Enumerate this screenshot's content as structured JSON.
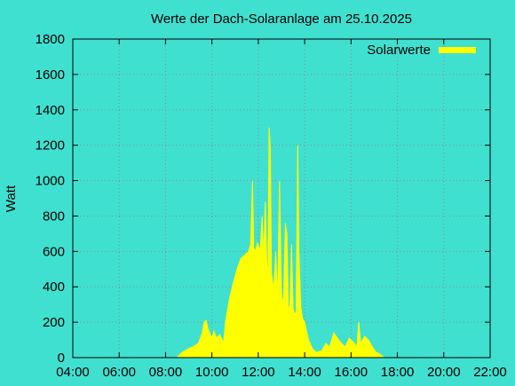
{
  "chart_data": {
    "type": "area",
    "title": "Werte der Dach-Solaranlage am 25.10.2025",
    "xlabel": "",
    "ylabel": "Watt",
    "x_ticks": [
      "04:00",
      "06:00",
      "08:00",
      "10:00",
      "12:00",
      "14:00",
      "16:00",
      "18:00",
      "20:00",
      "22:00"
    ],
    "y_ticks": [
      "0",
      "200",
      "400",
      "600",
      "800",
      "1000",
      "1200",
      "1400",
      "1600",
      "1800"
    ],
    "xlim": [
      "04:00",
      "22:00"
    ],
    "ylim": [
      0,
      1800
    ],
    "grid": true,
    "legend_position": "top-right",
    "series": [
      {
        "name": "Solarwerte",
        "color": "#ffff00",
        "points": [
          [
            "08:30",
            0
          ],
          [
            "08:40",
            25
          ],
          [
            "08:55",
            45
          ],
          [
            "09:10",
            60
          ],
          [
            "09:25",
            80
          ],
          [
            "09:35",
            140
          ],
          [
            "09:40",
            200
          ],
          [
            "09:45",
            210
          ],
          [
            "09:50",
            160
          ],
          [
            "10:00",
            110
          ],
          [
            "10:05",
            150
          ],
          [
            "10:12",
            110
          ],
          [
            "10:20",
            130
          ],
          [
            "10:25",
            110
          ],
          [
            "10:30",
            80
          ],
          [
            "10:35",
            200
          ],
          [
            "10:45",
            330
          ],
          [
            "10:55",
            420
          ],
          [
            "11:05",
            500
          ],
          [
            "11:15",
            560
          ],
          [
            "11:25",
            580
          ],
          [
            "11:35",
            600
          ],
          [
            "11:40",
            640
          ],
          [
            "11:45",
            1000
          ],
          [
            "11:48",
            620
          ],
          [
            "11:52",
            600
          ],
          [
            "11:58",
            650
          ],
          [
            "12:05",
            600
          ],
          [
            "12:10",
            800
          ],
          [
            "12:14",
            560
          ],
          [
            "12:18",
            880
          ],
          [
            "12:22",
            520
          ],
          [
            "12:25",
            500
          ],
          [
            "12:28",
            1300
          ],
          [
            "12:31",
            1180
          ],
          [
            "12:34",
            480
          ],
          [
            "12:40",
            380
          ],
          [
            "12:45",
            600
          ],
          [
            "12:50",
            320
          ],
          [
            "12:55",
            1000
          ],
          [
            "13:00",
            360
          ],
          [
            "13:05",
            300
          ],
          [
            "13:10",
            760
          ],
          [
            "13:14",
            700
          ],
          [
            "13:18",
            260
          ],
          [
            "13:22",
            300
          ],
          [
            "13:26",
            640
          ],
          [
            "13:30",
            280
          ],
          [
            "13:34",
            240
          ],
          [
            "13:38",
            260
          ],
          [
            "13:42",
            1200
          ],
          [
            "13:45",
            600
          ],
          [
            "13:50",
            280
          ],
          [
            "13:55",
            220
          ],
          [
            "14:00",
            200
          ],
          [
            "14:05",
            150
          ],
          [
            "14:10",
            100
          ],
          [
            "14:20",
            50
          ],
          [
            "14:30",
            30
          ],
          [
            "14:45",
            40
          ],
          [
            "14:55",
            80
          ],
          [
            "15:05",
            60
          ],
          [
            "15:15",
            140
          ],
          [
            "15:25",
            110
          ],
          [
            "15:35",
            80
          ],
          [
            "15:45",
            60
          ],
          [
            "15:55",
            110
          ],
          [
            "16:05",
            90
          ],
          [
            "16:15",
            60
          ],
          [
            "16:20",
            200
          ],
          [
            "16:25",
            80
          ],
          [
            "16:35",
            120
          ],
          [
            "16:45",
            100
          ],
          [
            "16:55",
            60
          ],
          [
            "17:05",
            30
          ],
          [
            "17:15",
            20
          ],
          [
            "17:25",
            0
          ]
        ]
      }
    ]
  }
}
